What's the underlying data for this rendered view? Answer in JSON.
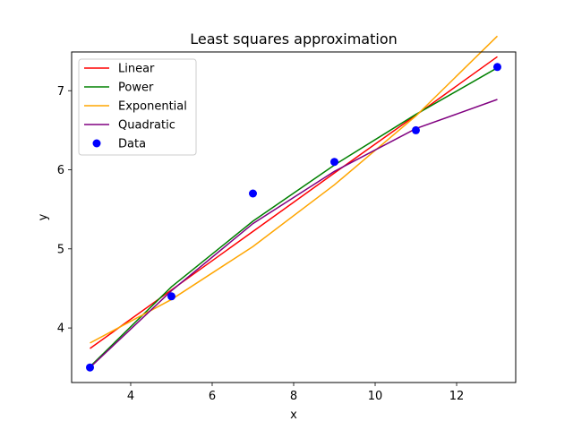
{
  "chart_data": {
    "type": "line",
    "title": "Least squares approximation",
    "xlabel": "x",
    "ylabel": "y",
    "xlim": [
      2.55,
      13.45
    ],
    "ylim": [
      3.31,
      7.49
    ],
    "x_ticks": [
      4,
      6,
      8,
      10,
      12
    ],
    "y_ticks": [
      4,
      5,
      6,
      7
    ],
    "grid": false,
    "legend_placement": "upper-left",
    "x": [
      3,
      5,
      7,
      9,
      11,
      13
    ],
    "series": [
      {
        "name": "Linear",
        "color": "#ff0000",
        "values": [
          3.74,
          4.48,
          5.22,
          5.96,
          6.69,
          7.43
        ]
      },
      {
        "name": "Power",
        "color": "#008000",
        "values": [
          3.51,
          4.52,
          5.35,
          6.06,
          6.7,
          7.29
        ]
      },
      {
        "name": "Exponential",
        "color": "#ffa500",
        "values": [
          3.81,
          4.36,
          5.03,
          5.81,
          6.68,
          7.69
        ]
      },
      {
        "name": "Quadratic",
        "color": "#800080",
        "values": [
          3.5,
          4.47,
          5.32,
          5.98,
          6.52,
          6.89
        ]
      }
    ],
    "scatter": {
      "name": "Data",
      "color": "#0000ff",
      "x": [
        3,
        5,
        7,
        9,
        11,
        13
      ],
      "y": [
        3.5,
        4.4,
        5.7,
        6.1,
        6.5,
        7.3
      ]
    }
  }
}
